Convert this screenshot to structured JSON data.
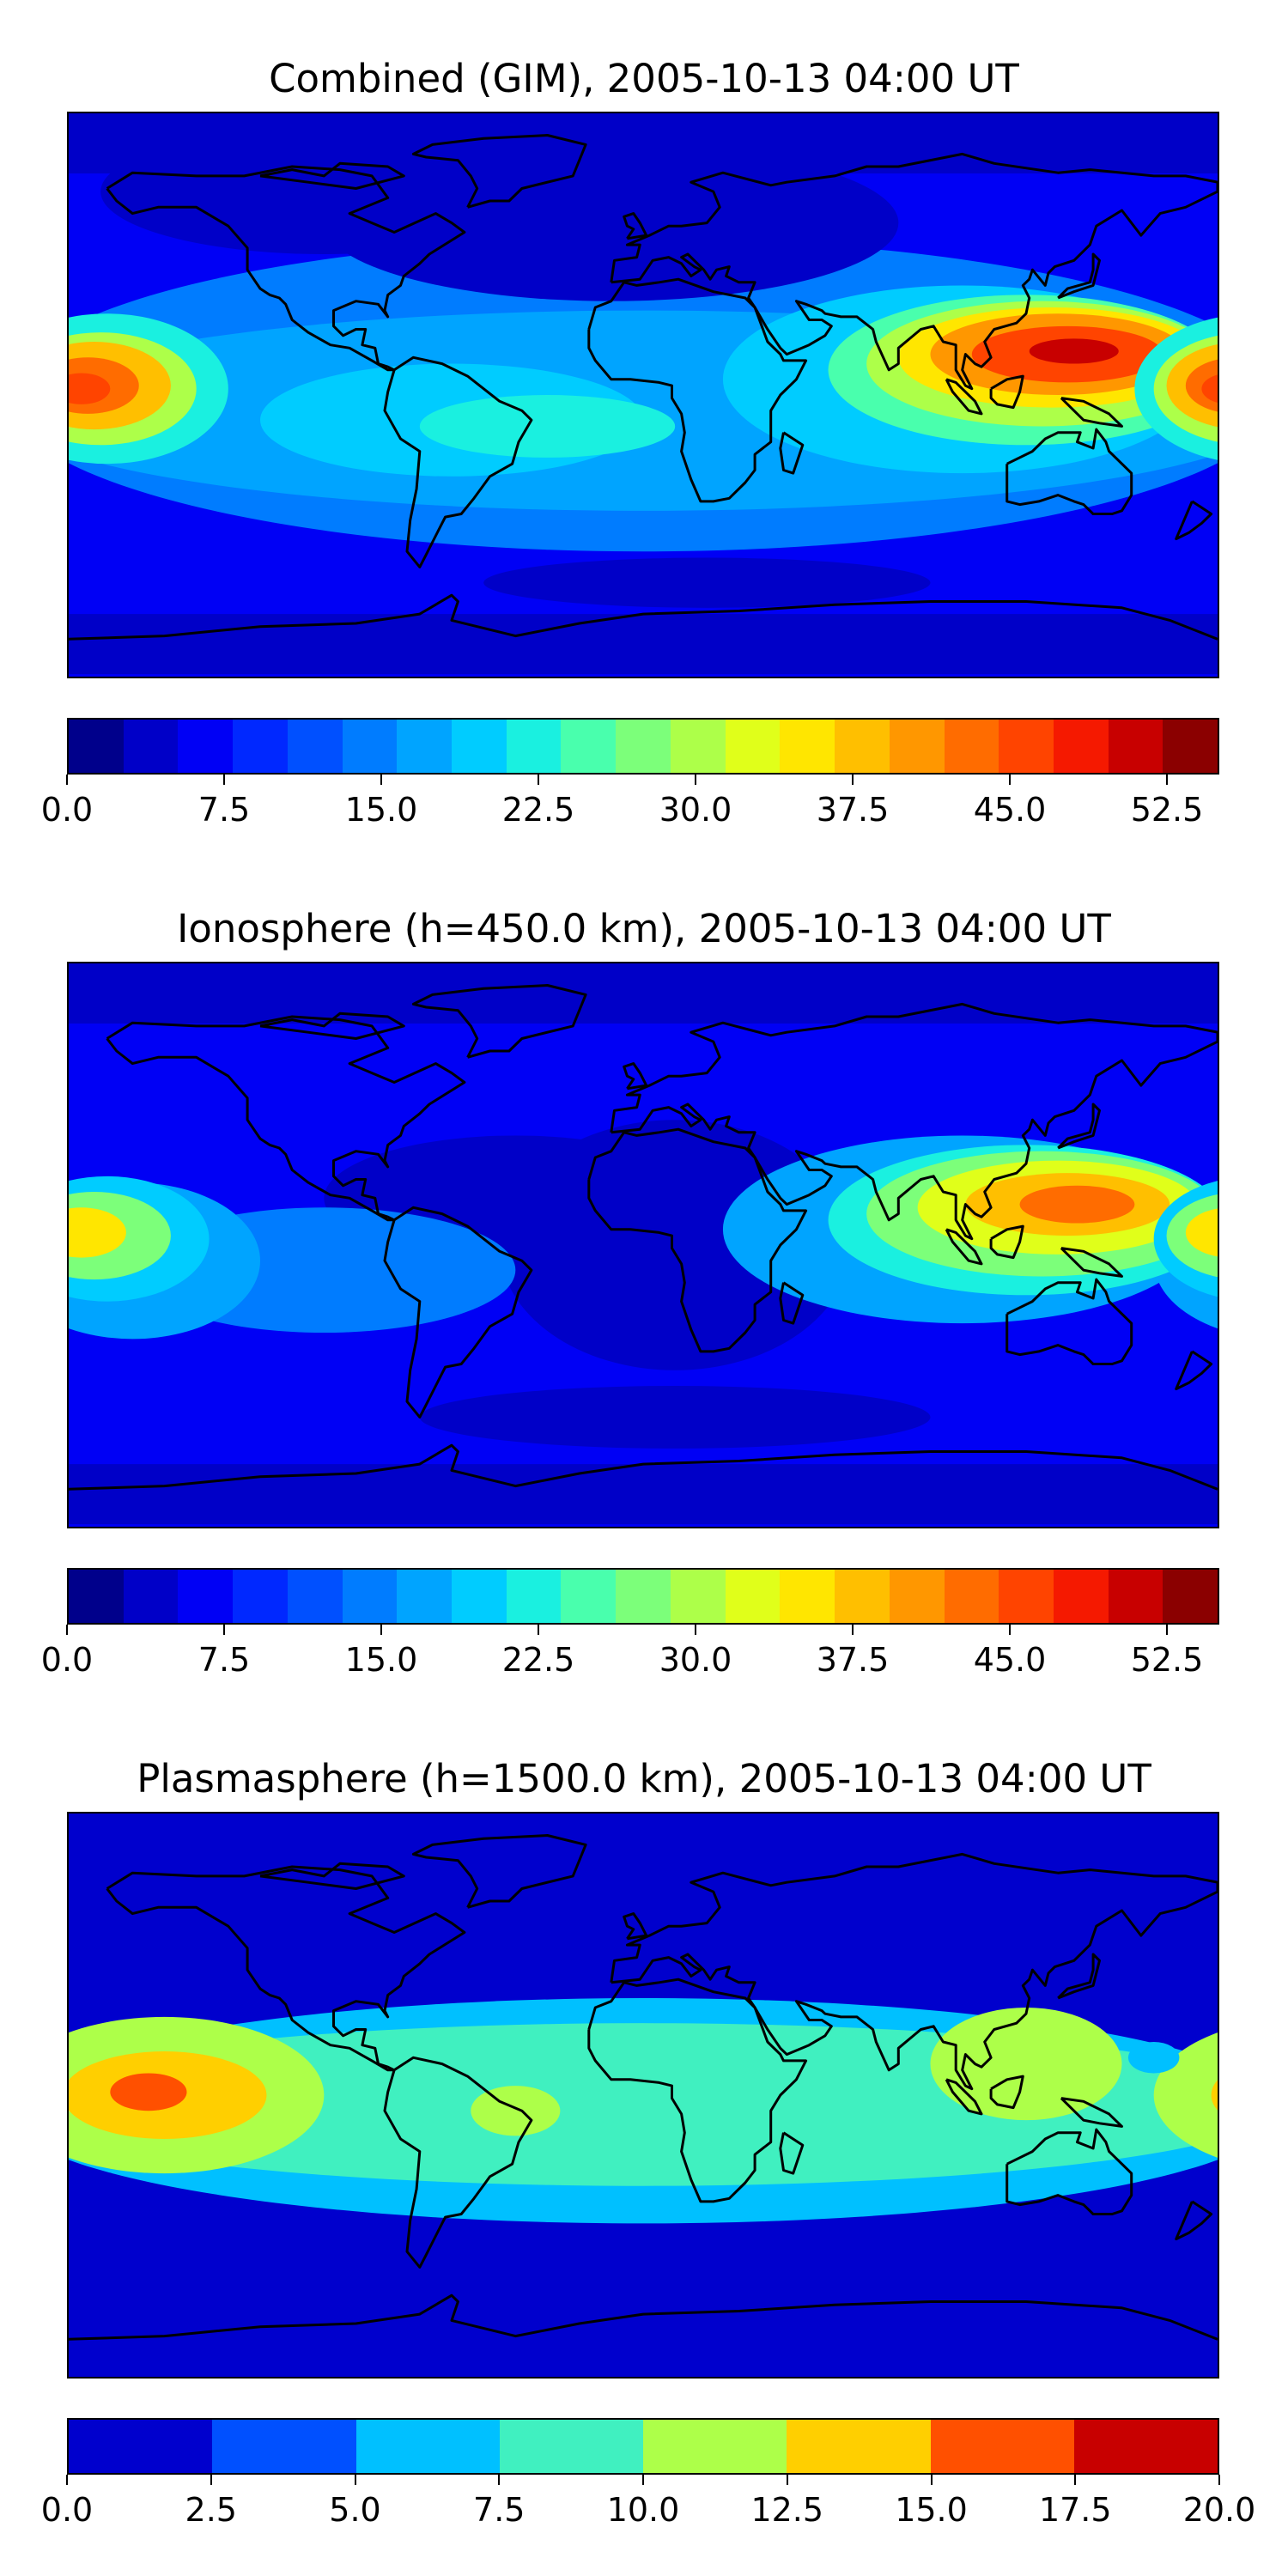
{
  "chart_data": [
    {
      "type": "heatmap",
      "subtype": "filled-contour-world-map",
      "title": "Combined (GIM), 2005-10-13 04:00 UT",
      "colorbar": {
        "min": 0.0,
        "max": 55.0,
        "step": 2.5,
        "tick_labels": [
          "0.0",
          "7.5",
          "15.0",
          "22.5",
          "30.0",
          "37.5",
          "45.0",
          "52.5"
        ],
        "tick_values": [
          0.0,
          7.5,
          15.0,
          22.5,
          30.0,
          37.5,
          45.0,
          52.5
        ],
        "colors": [
          "#00008b",
          "#0000c8",
          "#0000f5",
          "#0028ff",
          "#0050ff",
          "#007cff",
          "#00a4ff",
          "#00ccff",
          "#1af0e0",
          "#49ffad",
          "#7cff7a",
          "#adff49",
          "#e0ff1a",
          "#ffe600",
          "#ffbf00",
          "#ff9700",
          "#ff6c00",
          "#ff4400",
          "#f51900",
          "#c80000",
          "#8b0000"
        ]
      },
      "features": [
        {
          "name": "central-pacific-maximum",
          "lon": -172,
          "lat": 3,
          "value": 44
        },
        {
          "name": "west-pacific-maximum",
          "lon": 133,
          "lat": 13,
          "value": 50
        },
        {
          "name": "southeast-asia-high",
          "lon": 105,
          "lat": 10,
          "value": 40
        },
        {
          "name": "south-atlantic-band",
          "lon": -30,
          "lat": -10,
          "value": 22
        },
        {
          "name": "antarctic-minimum",
          "lon": 30,
          "lat": -60,
          "value": 2
        }
      ]
    },
    {
      "type": "heatmap",
      "subtype": "filled-contour-world-map",
      "title": "Ionosphere  (h=450.0 km), 2005-10-13 04:00 UT",
      "colorbar": {
        "min": 0.0,
        "max": 55.0,
        "step": 2.5,
        "tick_labels": [
          "0.0",
          "7.5",
          "15.0",
          "22.5",
          "30.0",
          "37.5",
          "45.0",
          "52.5"
        ],
        "tick_values": [
          0.0,
          7.5,
          15.0,
          22.5,
          30.0,
          37.5,
          45.0,
          52.5
        ],
        "colors": [
          "#00008b",
          "#0000c8",
          "#0000f5",
          "#0028ff",
          "#0050ff",
          "#007cff",
          "#00a4ff",
          "#00ccff",
          "#1af0e0",
          "#49ffad",
          "#7cff7a",
          "#adff49",
          "#e0ff1a",
          "#ffe600",
          "#ffbf00",
          "#ff9700",
          "#ff6c00",
          "#ff4400",
          "#f51900",
          "#c80000",
          "#8b0000"
        ]
      },
      "features": [
        {
          "name": "central-pacific-maximum",
          "lon": -178,
          "lat": 3,
          "value": 35
        },
        {
          "name": "west-pacific-maximum",
          "lon": 135,
          "lat": 12,
          "value": 42
        },
        {
          "name": "southeast-asia-high",
          "lon": 110,
          "lat": 5,
          "value": 33
        },
        {
          "name": "atlantic-africa-low",
          "lon": 0,
          "lat": 0,
          "value": 4
        },
        {
          "name": "antarctic-minimum",
          "lon": 10,
          "lat": -55,
          "value": 2
        }
      ]
    },
    {
      "type": "heatmap",
      "subtype": "filled-contour-world-map",
      "title": "Plasmasphere (h=1500.0 km), 2005-10-13 04:00 UT",
      "colorbar": {
        "min": 0.0,
        "max": 20.0,
        "step": 2.5,
        "tick_labels": [
          "0.0",
          "2.5",
          "5.0",
          "7.5",
          "10.0",
          "12.5",
          "15.0",
          "17.5",
          "20.0"
        ],
        "tick_values": [
          0.0,
          2.5,
          5.0,
          7.5,
          10.0,
          12.5,
          15.0,
          17.5,
          20.0
        ],
        "colors": [
          "#0000cd",
          "#0050ff",
          "#00c0ff",
          "#40f0c0",
          "#adff49",
          "#ffcf00",
          "#ff5000",
          "#c80000"
        ]
      },
      "features": [
        {
          "name": "central-pacific-maximum",
          "lon": -150,
          "lat": 0,
          "value": 16
        },
        {
          "name": "south-america-high",
          "lon": -40,
          "lat": -5,
          "value": 11
        },
        {
          "name": "west-pacific-high",
          "lon": 120,
          "lat": 10,
          "value": 11
        },
        {
          "name": "equatorial-band",
          "lon": 0,
          "lat": 0,
          "value": 6
        },
        {
          "name": "polar-low",
          "lon": 0,
          "lat": 70,
          "value": 1
        }
      ]
    }
  ]
}
